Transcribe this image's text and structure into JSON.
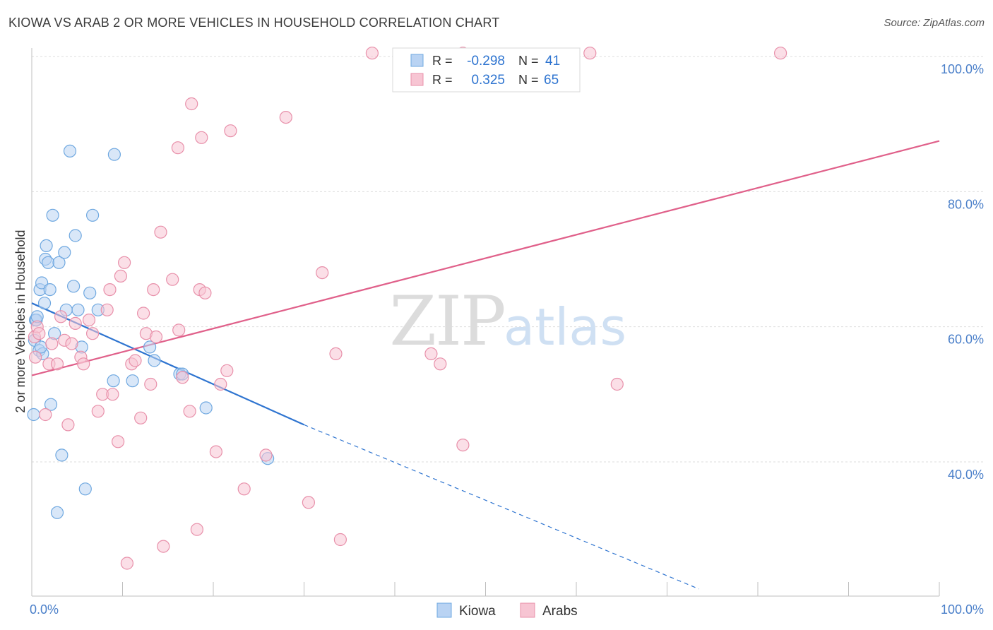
{
  "title": "KIOWA VS ARAB 2 OR MORE VEHICLES IN HOUSEHOLD CORRELATION CHART",
  "source": "Source: ZipAtlas.com",
  "watermark": {
    "zip": "ZIP",
    "atlas": "atlas"
  },
  "chart_data": {
    "type": "scatter",
    "title": "KIOWA VS ARAB 2 OR MORE VEHICLES IN HOUSEHOLD CORRELATION CHART",
    "xlabel": "",
    "ylabel": "2 or more Vehicles in Household",
    "xlim": [
      0,
      100
    ],
    "ylim": [
      20,
      102
    ],
    "x_tick_labels": [
      "0.0%",
      "100.0%"
    ],
    "y_ticks": [
      40,
      60,
      80,
      100
    ],
    "y_tick_labels": [
      "40.0%",
      "60.0%",
      "80.0%",
      "100.0%"
    ],
    "grid": true,
    "legend_position": "bottom",
    "series": [
      {
        "name": "Kiowa",
        "color": "#6fa8e0",
        "fill": "#b9d3f3",
        "line_color": "#2e74d0",
        "r": "-0.298",
        "n": "41",
        "trend": {
          "x0": 0,
          "y0": 63.5,
          "x1": 30,
          "y1": 45.5,
          "dash_to_x": 73.5,
          "dash_to_y": 21.2
        },
        "points": [
          [
            0.2,
            47.0
          ],
          [
            0.3,
            58.0
          ],
          [
            0.4,
            61.0
          ],
          [
            0.5,
            61.0
          ],
          [
            0.8,
            56.5
          ],
          [
            0.9,
            65.5
          ],
          [
            1.1,
            66.5
          ],
          [
            1.2,
            56.0
          ],
          [
            1.4,
            63.5
          ],
          [
            1.5,
            70.0
          ],
          [
            1.6,
            72.0
          ],
          [
            1.8,
            69.5
          ],
          [
            2.0,
            65.5
          ],
          [
            2.1,
            48.5
          ],
          [
            2.3,
            76.5
          ],
          [
            2.5,
            59.0
          ],
          [
            2.8,
            32.5
          ],
          [
            3.0,
            69.5
          ],
          [
            3.3,
            41.0
          ],
          [
            3.6,
            71.0
          ],
          [
            3.8,
            62.5
          ],
          [
            4.2,
            86.0
          ],
          [
            4.6,
            66.0
          ],
          [
            4.8,
            73.5
          ],
          [
            5.1,
            62.5
          ],
          [
            5.5,
            57.0
          ],
          [
            5.9,
            36.0
          ],
          [
            6.4,
            65.0
          ],
          [
            6.7,
            76.5
          ],
          [
            7.3,
            62.5
          ],
          [
            9.0,
            52.0
          ],
          [
            9.1,
            85.5
          ],
          [
            11.1,
            52.0
          ],
          [
            13.0,
            57.0
          ],
          [
            13.5,
            55.0
          ],
          [
            16.3,
            53.0
          ],
          [
            16.6,
            53.0
          ],
          [
            19.2,
            48.0
          ],
          [
            26.0,
            40.5
          ],
          [
            0.6,
            61.5
          ],
          [
            1.0,
            57.0
          ]
        ]
      },
      {
        "name": "Arabs",
        "color": "#e890aa",
        "fill": "#f7c5d3",
        "line_color": "#e0608a",
        "r": "0.325",
        "n": "65",
        "trend": {
          "x0": 0,
          "y0": 52.8,
          "x1": 100,
          "y1": 87.5
        },
        "points": [
          [
            0.3,
            58.5
          ],
          [
            0.4,
            55.5
          ],
          [
            0.6,
            60.0
          ],
          [
            1.5,
            47.0
          ],
          [
            1.9,
            54.5
          ],
          [
            2.2,
            57.5
          ],
          [
            2.8,
            54.5
          ],
          [
            3.2,
            61.5
          ],
          [
            3.6,
            58.0
          ],
          [
            4.0,
            45.5
          ],
          [
            4.4,
            57.5
          ],
          [
            4.8,
            60.5
          ],
          [
            5.4,
            55.5
          ],
          [
            5.7,
            54.5
          ],
          [
            6.3,
            61.0
          ],
          [
            6.7,
            59.0
          ],
          [
            7.3,
            47.5
          ],
          [
            7.8,
            50.0
          ],
          [
            8.3,
            62.5
          ],
          [
            8.6,
            65.5
          ],
          [
            8.9,
            50.0
          ],
          [
            9.5,
            43.0
          ],
          [
            9.8,
            67.5
          ],
          [
            10.2,
            69.5
          ],
          [
            10.5,
            25.0
          ],
          [
            11.0,
            54.5
          ],
          [
            11.4,
            55.0
          ],
          [
            12.0,
            46.5
          ],
          [
            12.3,
            62.0
          ],
          [
            12.6,
            59.0
          ],
          [
            13.1,
            51.5
          ],
          [
            13.4,
            65.5
          ],
          [
            13.7,
            58.5
          ],
          [
            14.2,
            74.0
          ],
          [
            14.5,
            27.5
          ],
          [
            15.5,
            67.0
          ],
          [
            16.1,
            86.5
          ],
          [
            16.2,
            59.5
          ],
          [
            16.6,
            52.5
          ],
          [
            17.4,
            47.5
          ],
          [
            17.6,
            93.0
          ],
          [
            18.2,
            30.0
          ],
          [
            18.5,
            65.5
          ],
          [
            18.7,
            88.0
          ],
          [
            19.1,
            65.0
          ],
          [
            20.3,
            41.5
          ],
          [
            20.8,
            51.5
          ],
          [
            21.5,
            53.5
          ],
          [
            21.9,
            89.0
          ],
          [
            23.4,
            36.0
          ],
          [
            25.8,
            41.0
          ],
          [
            28.0,
            91.0
          ],
          [
            30.5,
            34.0
          ],
          [
            32.0,
            68.0
          ],
          [
            33.5,
            56.0
          ],
          [
            34.0,
            28.5
          ],
          [
            37.5,
            100.5
          ],
          [
            44.0,
            56.0
          ],
          [
            45.0,
            54.5
          ],
          [
            47.5,
            42.5
          ],
          [
            47.5,
            100.5
          ],
          [
            61.5,
            100.5
          ],
          [
            64.5,
            51.5
          ],
          [
            82.5,
            100.5
          ],
          [
            0.8,
            59.0
          ]
        ]
      }
    ]
  },
  "legend_box": {
    "rows": [
      {
        "r_label": "R =",
        "r_value": "-0.298",
        "n_label": "N =",
        "n_value": "41"
      },
      {
        "r_label": "R =",
        "r_value": "0.325",
        "n_label": "N =",
        "n_value": "65"
      }
    ]
  },
  "bottom_legend": [
    "Kiowa",
    "Arabs"
  ]
}
